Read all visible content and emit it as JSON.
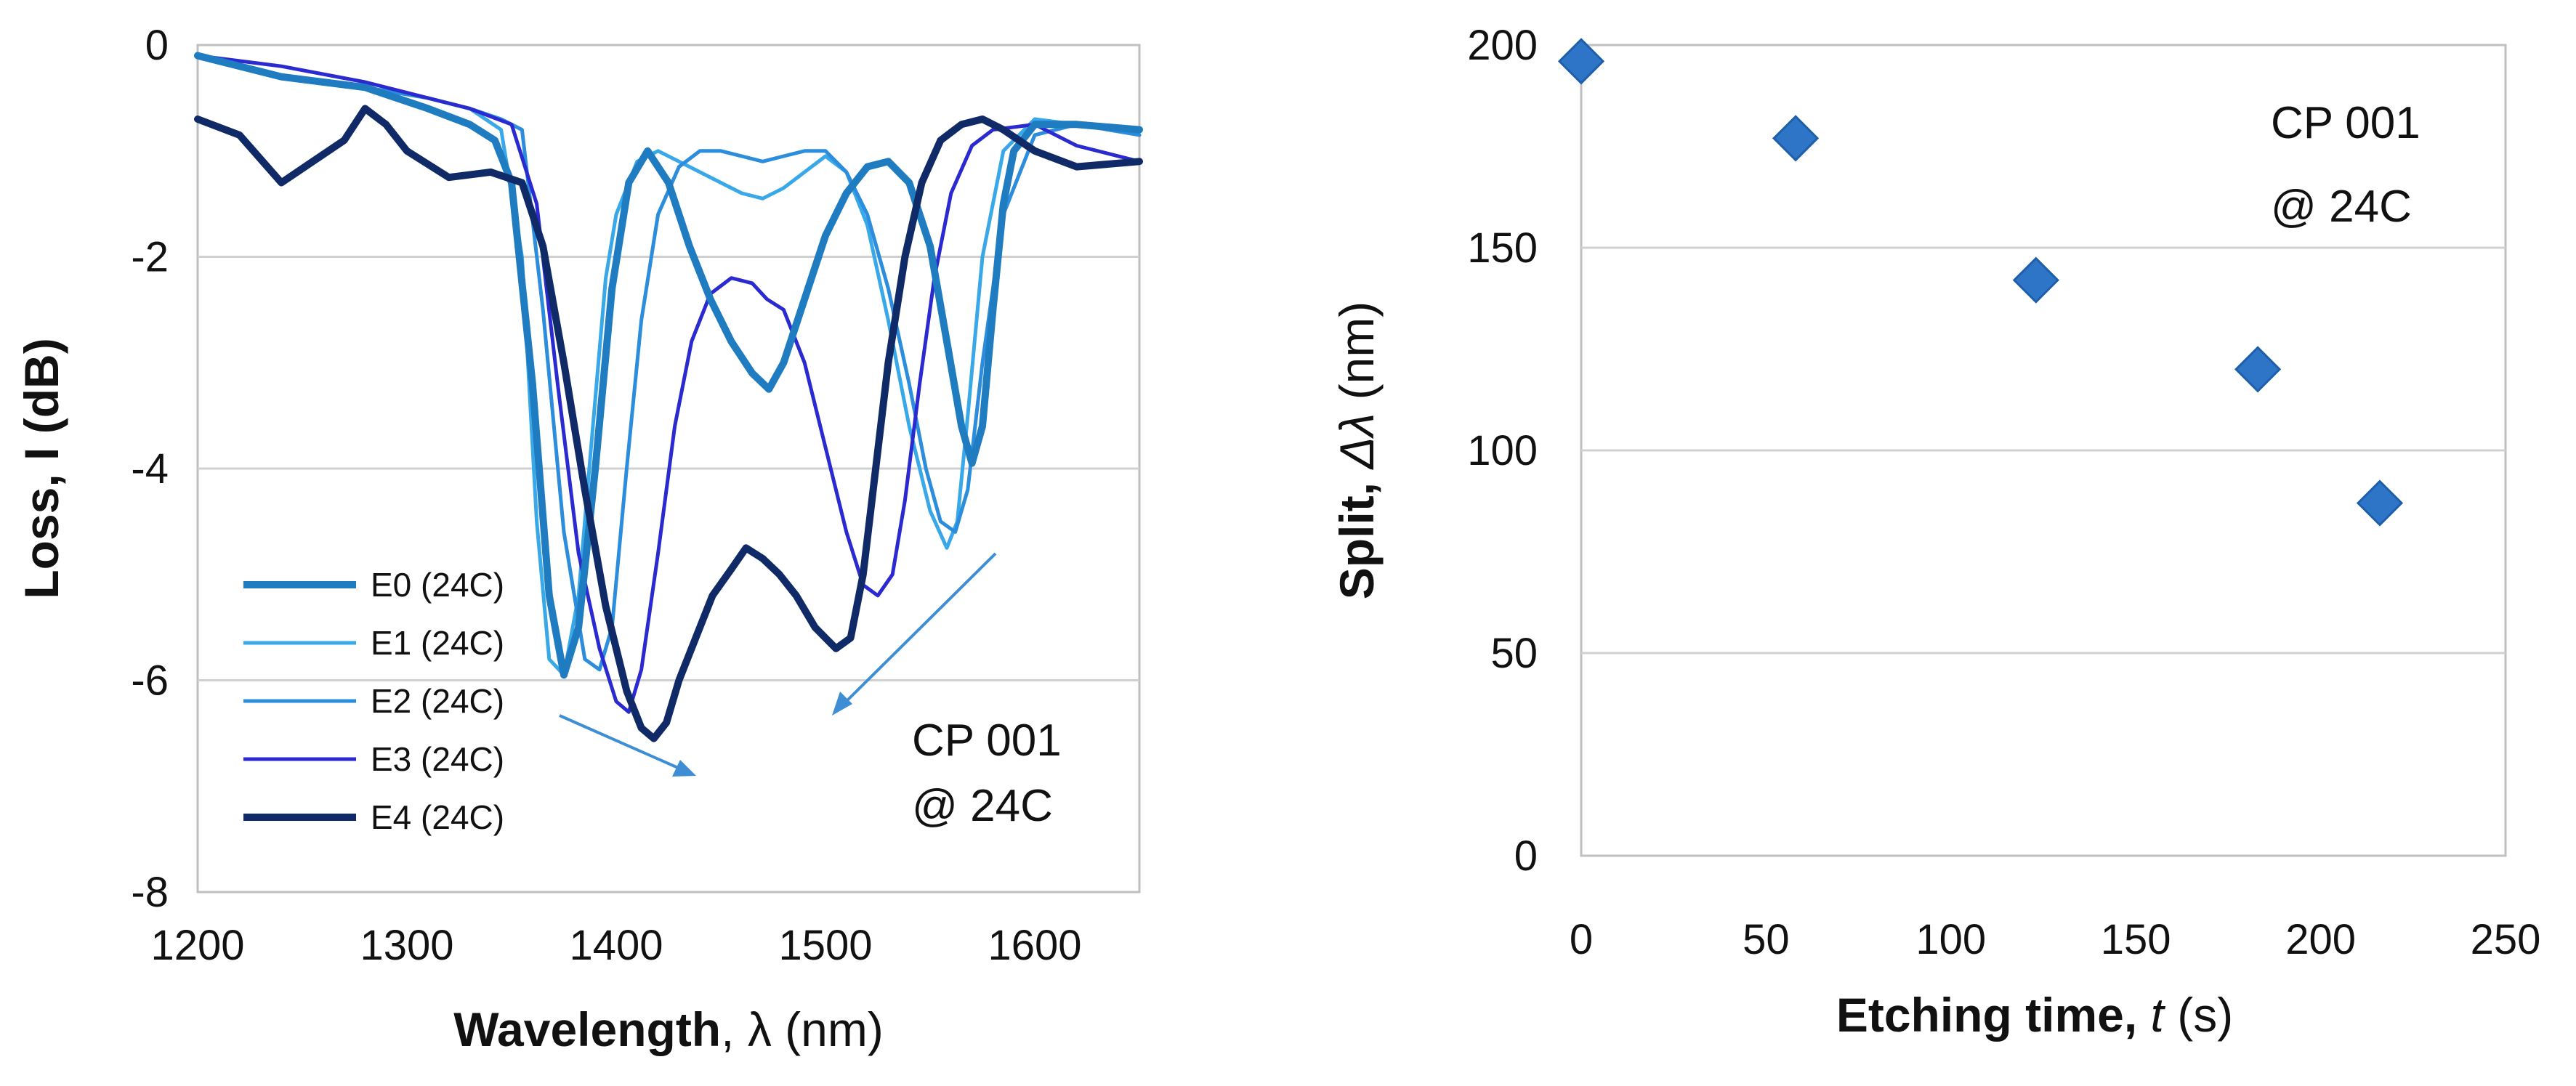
{
  "charts": {
    "left": {
      "type": "line",
      "xlabel": {
        "bold": "Wavelength",
        "sep": ", ",
        "symbol": "λ",
        "units": " (nm)"
      },
      "ylabel": "Loss, I (dB)",
      "xlim": [
        1200,
        1650
      ],
      "ylim": [
        -8,
        0
      ],
      "xticks": [
        "1200",
        "1300",
        "1400",
        "1500",
        "1600"
      ],
      "yticks": [
        "-8",
        "-6",
        "-4",
        "-2",
        "0"
      ],
      "annotation": [
        "CP 001",
        "@ 24C"
      ],
      "series": [
        {
          "name": "E0 (24C)",
          "color": "#1f7cc0",
          "width": 10,
          "x": [
            1200,
            1240,
            1280,
            1310,
            1330,
            1342,
            1350,
            1360,
            1368,
            1375,
            1382,
            1390,
            1398,
            1406,
            1415,
            1425,
            1435,
            1445,
            1455,
            1465,
            1473,
            1480,
            1490,
            1500,
            1510,
            1520,
            1530,
            1540,
            1550,
            1558,
            1565,
            1570,
            1575,
            1580,
            1585,
            1590,
            1600,
            1620,
            1650
          ],
          "y": [
            -0.1,
            -0.3,
            -0.4,
            -0.6,
            -0.75,
            -0.9,
            -1.3,
            -3.2,
            -5.2,
            -5.95,
            -5.5,
            -4.0,
            -2.3,
            -1.3,
            -1.0,
            -1.3,
            -1.9,
            -2.4,
            -2.8,
            -3.1,
            -3.25,
            -3.0,
            -2.4,
            -1.8,
            -1.4,
            -1.15,
            -1.1,
            -1.3,
            -1.9,
            -2.8,
            -3.6,
            -3.95,
            -3.6,
            -2.5,
            -1.5,
            -1.0,
            -0.75,
            -0.75,
            -0.8
          ]
        },
        {
          "name": "E1 (24C)",
          "color": "#38a8e8",
          "width": 5,
          "x": [
            1200,
            1240,
            1280,
            1310,
            1330,
            1345,
            1355,
            1362,
            1368,
            1375,
            1382,
            1388,
            1395,
            1400,
            1410,
            1420,
            1430,
            1440,
            1450,
            1460,
            1470,
            1480,
            1490,
            1500,
            1510,
            1520,
            1530,
            1540,
            1550,
            1558,
            1563,
            1568,
            1575,
            1585,
            1600,
            1620,
            1650
          ],
          "y": [
            -0.1,
            -0.3,
            -0.4,
            -0.5,
            -0.6,
            -0.8,
            -2.0,
            -4.5,
            -5.8,
            -5.95,
            -5.2,
            -3.8,
            -2.2,
            -1.6,
            -1.1,
            -1.0,
            -1.1,
            -1.2,
            -1.3,
            -1.4,
            -1.45,
            -1.35,
            -1.2,
            -1.05,
            -1.2,
            -1.7,
            -2.6,
            -3.6,
            -4.4,
            -4.75,
            -4.5,
            -3.5,
            -2.0,
            -1.0,
            -0.7,
            -0.75,
            -0.8
          ]
        },
        {
          "name": "E2 (24C)",
          "color": "#2b8ddc",
          "width": 5,
          "x": [
            1200,
            1240,
            1280,
            1310,
            1330,
            1345,
            1355,
            1365,
            1375,
            1385,
            1392,
            1398,
            1405,
            1412,
            1420,
            1430,
            1440,
            1450,
            1460,
            1470,
            1480,
            1490,
            1500,
            1510,
            1520,
            1530,
            1540,
            1548,
            1555,
            1562,
            1568,
            1575,
            1585,
            1600,
            1620,
            1650
          ],
          "y": [
            -0.1,
            -0.3,
            -0.4,
            -0.5,
            -0.6,
            -0.7,
            -0.8,
            -2.5,
            -4.6,
            -5.8,
            -5.9,
            -5.5,
            -4.0,
            -2.6,
            -1.6,
            -1.15,
            -1.0,
            -1.0,
            -1.05,
            -1.1,
            -1.05,
            -1.0,
            -1.0,
            -1.2,
            -1.6,
            -2.3,
            -3.2,
            -4.0,
            -4.5,
            -4.6,
            -4.2,
            -3.0,
            -1.6,
            -0.85,
            -0.75,
            -0.85
          ]
        },
        {
          "name": "E3 (24C)",
          "color": "#2a2ad0",
          "width": 5,
          "x": [
            1200,
            1240,
            1280,
            1310,
            1330,
            1350,
            1362,
            1372,
            1382,
            1392,
            1400,
            1406,
            1412,
            1420,
            1428,
            1436,
            1445,
            1455,
            1465,
            1472,
            1480,
            1490,
            1500,
            1510,
            1518,
            1525,
            1532,
            1538,
            1545,
            1552,
            1560,
            1570,
            1580,
            1600,
            1620,
            1650
          ],
          "y": [
            -0.1,
            -0.2,
            -0.35,
            -0.5,
            -0.6,
            -0.75,
            -1.5,
            -3.2,
            -4.8,
            -5.7,
            -6.2,
            -6.3,
            -5.9,
            -4.8,
            -3.6,
            -2.8,
            -2.35,
            -2.2,
            -2.25,
            -2.4,
            -2.5,
            -3.0,
            -3.8,
            -4.6,
            -5.1,
            -5.2,
            -5.0,
            -4.3,
            -3.2,
            -2.2,
            -1.4,
            -0.95,
            -0.8,
            -0.75,
            -0.95,
            -1.1
          ]
        },
        {
          "name": "E4 (24C)",
          "color": "#0f2a66",
          "width": 10,
          "x": [
            1200,
            1220,
            1240,
            1255,
            1270,
            1280,
            1290,
            1300,
            1320,
            1340,
            1355,
            1365,
            1375,
            1385,
            1395,
            1405,
            1412,
            1418,
            1424,
            1430,
            1438,
            1446,
            1455,
            1462,
            1470,
            1478,
            1486,
            1495,
            1505,
            1512,
            1518,
            1524,
            1530,
            1538,
            1546,
            1555,
            1565,
            1575,
            1585,
            1600,
            1620,
            1650
          ],
          "y": [
            -0.7,
            -0.85,
            -1.3,
            -1.1,
            -0.9,
            -0.6,
            -0.75,
            -1.0,
            -1.25,
            -1.2,
            -1.3,
            -1.9,
            -3.0,
            -4.2,
            -5.3,
            -6.1,
            -6.45,
            -6.55,
            -6.4,
            -6.0,
            -5.6,
            -5.2,
            -4.95,
            -4.75,
            -4.85,
            -5.0,
            -5.2,
            -5.5,
            -5.7,
            -5.6,
            -5.0,
            -4.0,
            -3.0,
            -2.0,
            -1.3,
            -0.9,
            -0.75,
            -0.7,
            -0.8,
            -1.0,
            -1.15,
            -1.1
          ]
        }
      ]
    },
    "right": {
      "type": "scatter",
      "xlabel": {
        "bold": "Etching time",
        "sep": ", ",
        "symbol": "t",
        "units": " (s)"
      },
      "ylabel": {
        "bold": "Split",
        "sep": ", ",
        "symbol": "Δλ",
        "units": " (nm)"
      },
      "xlim": [
        0,
        250
      ],
      "ylim": [
        0,
        200
      ],
      "xticks": [
        "0",
        "50",
        "100",
        "150",
        "200",
        "250"
      ],
      "yticks": [
        "0",
        "50",
        "100",
        "150",
        "200"
      ],
      "annotation": [
        "CP 001",
        "@ 24C"
      ],
      "marker_color": "#2e75c8",
      "points": [
        {
          "x": 0,
          "y": 196
        },
        {
          "x": 58,
          "y": 177
        },
        {
          "x": 123,
          "y": 142
        },
        {
          "x": 183,
          "y": 120
        },
        {
          "x": 216,
          "y": 87
        }
      ]
    }
  }
}
